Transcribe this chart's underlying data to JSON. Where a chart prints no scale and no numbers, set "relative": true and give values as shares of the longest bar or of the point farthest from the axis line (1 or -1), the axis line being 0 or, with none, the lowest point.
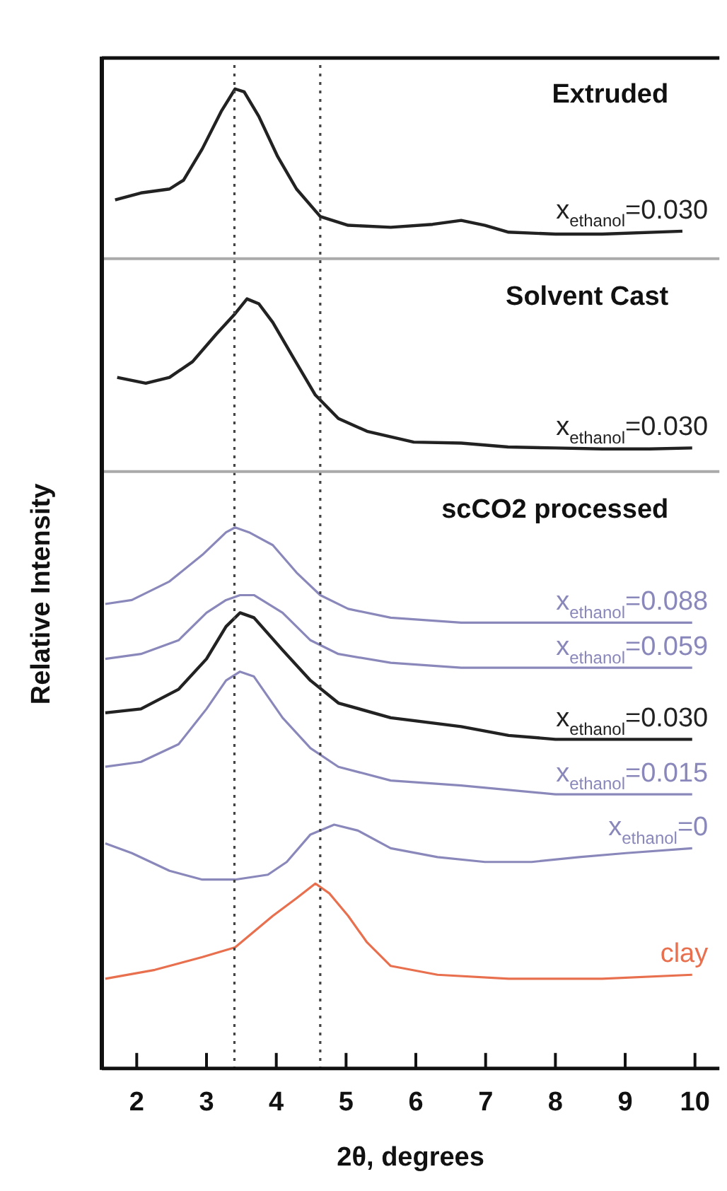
{
  "chart_data": {
    "type": "line",
    "relative": true,
    "xlim": [
      1.5,
      10.35
    ],
    "xticks": [
      2,
      3,
      4,
      5,
      6,
      7,
      8,
      9,
      10
    ],
    "tick_labels": "x",
    "xlabel": "2θ, degrees",
    "ylabel": "Relative Intensity",
    "annotations": [
      "Extruded",
      "Solvent Cast",
      "scCO2 processed"
    ],
    "ref_lines": [
      {
        "axis": "x",
        "value": 3.4,
        "line_style": "dotted",
        "color": "#444444"
      },
      {
        "axis": "x",
        "value": 4.63,
        "line_style": "dotted",
        "color": "#444444"
      },
      {
        "axis": "y",
        "value": 0.827,
        "line_style": "solid",
        "color": "#aaaaaa"
      },
      {
        "axis": "y",
        "value": 0.61,
        "line_style": "solid",
        "color": "#aaaaaa"
      }
    ],
    "series": [
      {
        "name": "x$_{ethanol}$=0.030",
        "color": "#222222",
        "x": [
          1.69,
          2.06,
          2.47,
          2.67,
          2.94,
          3.21,
          3.41,
          3.54,
          3.75,
          4.02,
          4.29,
          4.63,
          5.03,
          5.64,
          6.24,
          6.65,
          6.99,
          7.33,
          8.0,
          8.67,
          9.82
        ],
        "values": [
          0.887,
          0.894,
          0.898,
          0.907,
          0.939,
          0.977,
          1.0,
          0.997,
          0.972,
          0.931,
          0.898,
          0.87,
          0.861,
          0.859,
          0.862,
          0.866,
          0.861,
          0.854,
          0.852,
          0.852,
          0.855
        ]
      },
      {
        "name": "x$_{ethanol}$=0.030",
        "color": "#222222",
        "x": [
          1.72,
          2.13,
          2.47,
          2.8,
          3.14,
          3.41,
          3.58,
          3.75,
          3.95,
          4.22,
          4.56,
          4.89,
          5.3,
          5.97,
          6.65,
          7.32,
          8.0,
          8.67,
          9.35,
          9.96
        ],
        "values": [
          0.706,
          0.7,
          0.706,
          0.722,
          0.75,
          0.771,
          0.786,
          0.781,
          0.762,
          0.729,
          0.688,
          0.664,
          0.651,
          0.64,
          0.639,
          0.635,
          0.634,
          0.633,
          0.633,
          0.634
        ]
      },
      {
        "name": "x$_{ethanol}$=0.088",
        "color": "#8a88bb",
        "x": [
          1.55,
          1.93,
          2.47,
          2.94,
          3.28,
          3.41,
          3.61,
          3.95,
          4.29,
          4.63,
          5.03,
          5.64,
          6.65,
          8.0,
          9.96
        ],
        "values": [
          0.475,
          0.479,
          0.498,
          0.525,
          0.548,
          0.553,
          0.548,
          0.535,
          0.507,
          0.484,
          0.47,
          0.461,
          0.456,
          0.456,
          0.456
        ]
      },
      {
        "name": "x$_{ethanol}$=0.059",
        "color": "#8a88bb",
        "x": [
          1.55,
          2.06,
          2.6,
          3.0,
          3.28,
          3.48,
          3.68,
          4.09,
          4.49,
          4.89,
          5.64,
          6.65,
          8.0,
          9.96
        ],
        "values": [
          0.419,
          0.424,
          0.438,
          0.466,
          0.479,
          0.484,
          0.484,
          0.466,
          0.438,
          0.424,
          0.415,
          0.41,
          0.41,
          0.41
        ]
      },
      {
        "name": "x$_{ethanol}$=0.030",
        "color": "#222222",
        "x": [
          1.55,
          2.06,
          2.6,
          3.0,
          3.28,
          3.48,
          3.68,
          4.09,
          4.49,
          4.89,
          5.64,
          6.65,
          7.33,
          8.0,
          9.96
        ],
        "values": [
          0.364,
          0.368,
          0.388,
          0.419,
          0.452,
          0.466,
          0.461,
          0.428,
          0.397,
          0.374,
          0.359,
          0.35,
          0.341,
          0.337,
          0.337
        ]
      },
      {
        "name": "x$_{ethanol}$=0.015",
        "color": "#8a88bb",
        "x": [
          1.55,
          2.06,
          2.6,
          3.0,
          3.28,
          3.48,
          3.68,
          4.09,
          4.49,
          4.89,
          5.64,
          6.65,
          8.0,
          9.96
        ],
        "values": [
          0.309,
          0.314,
          0.332,
          0.368,
          0.397,
          0.406,
          0.401,
          0.359,
          0.328,
          0.309,
          0.295,
          0.29,
          0.281,
          0.281
        ]
      },
      {
        "name": "x$_{ethanol}$=0",
        "color": "#8a88bb",
        "x": [
          1.55,
          1.93,
          2.47,
          2.94,
          3.41,
          3.88,
          4.15,
          4.49,
          4.83,
          5.17,
          5.64,
          6.31,
          6.99,
          7.66,
          8.34,
          9.01,
          9.96
        ],
        "values": [
          0.231,
          0.221,
          0.203,
          0.194,
          0.194,
          0.199,
          0.212,
          0.24,
          0.25,
          0.244,
          0.226,
          0.217,
          0.212,
          0.212,
          0.217,
          0.221,
          0.226
        ]
      },
      {
        "name": "clay",
        "color": "#e8704f",
        "x": [
          1.55,
          2.26,
          2.94,
          3.41,
          3.95,
          4.29,
          4.56,
          4.76,
          5.03,
          5.3,
          5.64,
          6.31,
          7.33,
          8.67,
          9.96
        ],
        "values": [
          0.093,
          0.102,
          0.115,
          0.125,
          0.157,
          0.175,
          0.19,
          0.18,
          0.157,
          0.13,
          0.106,
          0.097,
          0.093,
          0.093,
          0.097
        ]
      }
    ]
  }
}
